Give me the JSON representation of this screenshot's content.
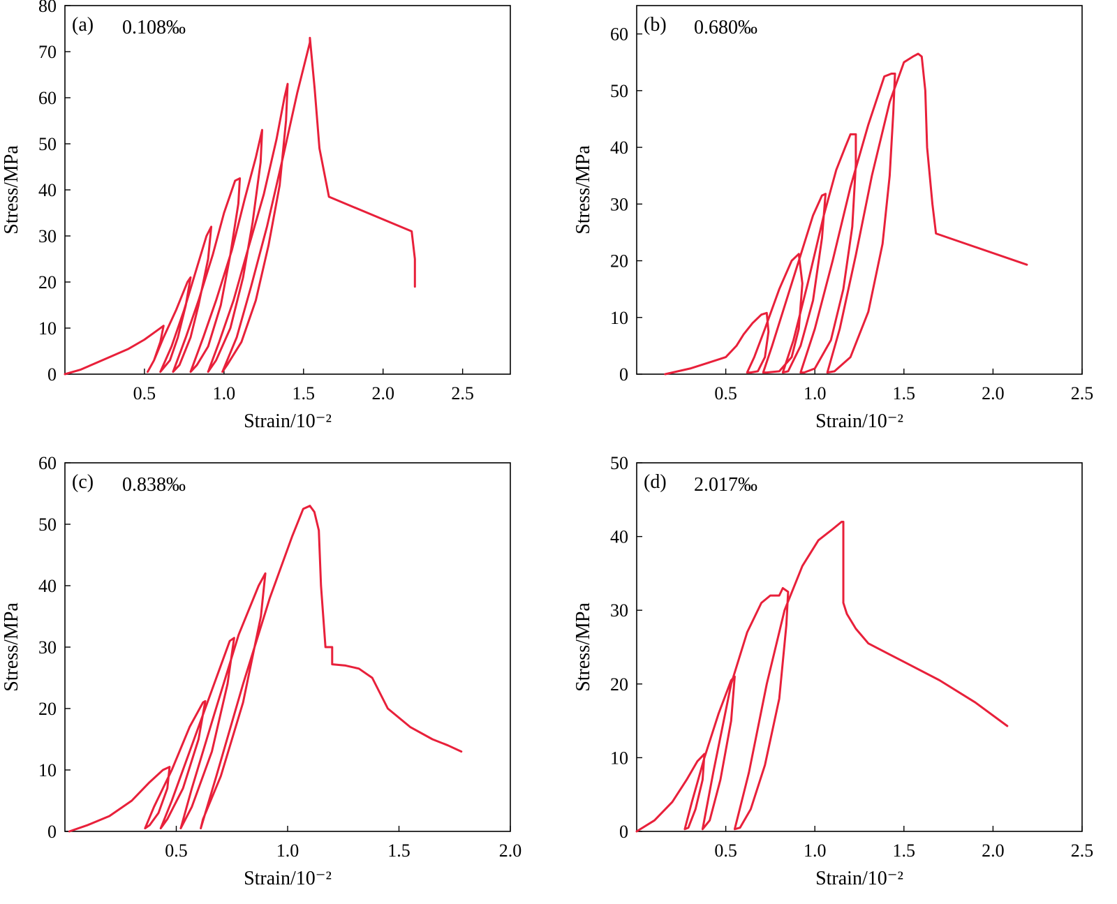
{
  "chart_data": [
    {
      "type": "line",
      "panel_label": "(a)",
      "annotation": "0.108‰",
      "xlabel": "Strain/10⁻²",
      "ylabel": "Stress/MPa",
      "xlim": [
        0,
        2.8
      ],
      "ylim": [
        0,
        80
      ],
      "xticks": [
        0.5,
        1.0,
        1.5,
        2.0,
        2.5
      ],
      "xtick_labels": [
        "0.5",
        "1.0",
        "1.5",
        "2.0",
        "2.5"
      ],
      "yticks": [
        0,
        10,
        20,
        30,
        40,
        50,
        60,
        70,
        80
      ],
      "ytick_labels": [
        "0",
        "10",
        "20",
        "30",
        "40",
        "50",
        "60",
        "70",
        "80"
      ],
      "color": "#e8203a",
      "series": [
        {
          "x": [
            0.0,
            0.1,
            0.2,
            0.3,
            0.4,
            0.5,
            0.58,
            0.62,
            0.6,
            0.56,
            0.52,
            0.56,
            0.62,
            0.7,
            0.77,
            0.79,
            0.76,
            0.71,
            0.66,
            0.6,
            0.67,
            0.75,
            0.82,
            0.89,
            0.92,
            0.9,
            0.84,
            0.79,
            0.72,
            0.68,
            0.76,
            0.84,
            0.93,
            1.0,
            1.07,
            1.1,
            1.09,
            1.04,
            0.98,
            0.9,
            0.83,
            0.79,
            0.87,
            0.95,
            1.05,
            1.13,
            1.2,
            1.24,
            1.23,
            1.18,
            1.12,
            1.04,
            0.95,
            0.9,
            0.97,
            1.06,
            1.15,
            1.25,
            1.33,
            1.38,
            1.4,
            1.39,
            1.35,
            1.28,
            1.2,
            1.11,
            1.02,
            0.99,
            1.08,
            1.17,
            1.27,
            1.37,
            1.46,
            1.54,
            1.54,
            1.57,
            1.6,
            1.66,
            2.18,
            2.2,
            2.2
          ],
          "y": [
            0,
            1,
            2.5,
            4,
            5.5,
            7.5,
            9.5,
            10.5,
            7,
            3,
            0.5,
            3,
            8,
            14,
            20,
            21,
            15,
            8,
            3,
            0.5,
            6,
            14,
            22,
            30,
            32,
            25,
            15,
            8,
            2,
            0.5,
            8,
            16,
            26,
            35,
            42,
            42.5,
            37,
            26,
            15,
            6,
            2,
            0.5,
            8,
            16,
            27,
            38,
            47,
            53,
            46,
            33,
            21,
            10,
            3,
            0.5,
            7,
            16,
            27,
            39,
            51,
            60,
            63,
            55,
            41,
            28,
            16,
            7,
            2,
            0.5,
            8,
            19,
            32,
            47,
            61,
            72,
            73,
            62,
            49,
            38.5,
            31,
            25,
            19
          ]
        }
      ]
    },
    {
      "type": "line",
      "panel_label": "(b)",
      "annotation": "0.680‰",
      "xlabel": "Strain/10⁻²",
      "ylabel": "Stress/MPa",
      "xlim": [
        0,
        2.5
      ],
      "ylim": [
        0,
        65
      ],
      "xticks": [
        0.5,
        1.0,
        1.5,
        2.0,
        2.5
      ],
      "xtick_labels": [
        "0.5",
        "1.0",
        "1.5",
        "2.0",
        "2.5"
      ],
      "yticks": [
        0,
        10,
        20,
        30,
        40,
        50,
        60
      ],
      "ytick_labels": [
        "0",
        "10",
        "20",
        "30",
        "40",
        "50",
        "60"
      ],
      "color": "#e8203a",
      "series": [
        {
          "x": [
            0.16,
            0.3,
            0.4,
            0.5,
            0.56,
            0.6,
            0.65,
            0.7,
            0.73,
            0.74,
            0.72,
            0.68,
            0.64,
            0.62,
            0.66,
            0.72,
            0.8,
            0.87,
            0.91,
            0.93,
            0.91,
            0.87,
            0.8,
            0.73,
            0.71,
            0.76,
            0.84,
            0.92,
            0.99,
            1.04,
            1.06,
            1.04,
            0.99,
            0.92,
            0.85,
            0.82,
            0.88,
            0.96,
            1.05,
            1.12,
            1.17,
            1.2,
            1.23,
            1.23,
            1.21,
            1.16,
            1.09,
            1.0,
            0.94,
            0.92,
            1.0,
            1.1,
            1.2,
            1.3,
            1.39,
            1.43,
            1.45,
            1.44,
            1.42,
            1.38,
            1.3,
            1.2,
            1.11,
            1.07,
            1.14,
            1.23,
            1.32,
            1.42,
            1.5,
            1.55,
            1.58,
            1.6,
            1.62,
            1.63,
            1.66,
            1.68,
            2.19
          ],
          "y": [
            0,
            1,
            2,
            3,
            5,
            7,
            9,
            10.5,
            10.8,
            7.5,
            3,
            0.5,
            0.3,
            0.3,
            3,
            8,
            15,
            20,
            21.2,
            16,
            8,
            3,
            0.5,
            0.3,
            0.3,
            5,
            13,
            21,
            28,
            31.5,
            31.8,
            24,
            13,
            5,
            0.5,
            0.3,
            6,
            16,
            28,
            36,
            40,
            42.3,
            42.3,
            37,
            26,
            15,
            6,
            1,
            0.3,
            0.3,
            8,
            20,
            33,
            44,
            52.5,
            53,
            53,
            46,
            35,
            23,
            11,
            3,
            0.5,
            0.3,
            8,
            21,
            35,
            48,
            55,
            56,
            56.5,
            56,
            50,
            40,
            30,
            24.8,
            19.3
          ]
        }
      ]
    },
    {
      "type": "line",
      "panel_label": "(c)",
      "annotation": "0.838‰",
      "xlabel": "Strain/10⁻²",
      "ylabel": "Stress/MPa",
      "xlim": [
        0,
        2.0
      ],
      "ylim": [
        0,
        60
      ],
      "xticks": [
        0.5,
        1.0,
        1.5,
        2.0
      ],
      "xtick_labels": [
        "0.5",
        "1.0",
        "1.5",
        "2.0"
      ],
      "yticks": [
        0,
        10,
        20,
        30,
        40,
        50,
        60
      ],
      "ytick_labels": [
        "0",
        "10",
        "20",
        "30",
        "40",
        "50",
        "60"
      ],
      "color": "#e8203a",
      "series": [
        {
          "x": [
            0.02,
            0.1,
            0.2,
            0.3,
            0.38,
            0.44,
            0.47,
            0.46,
            0.42,
            0.38,
            0.36,
            0.4,
            0.48,
            0.56,
            0.62,
            0.63,
            0.6,
            0.53,
            0.46,
            0.43,
            0.48,
            0.56,
            0.66,
            0.74,
            0.76,
            0.73,
            0.66,
            0.57,
            0.52,
            0.57,
            0.67,
            0.78,
            0.87,
            0.9,
            0.88,
            0.8,
            0.7,
            0.62,
            0.61,
            0.68,
            0.8,
            0.92,
            1.02,
            1.07,
            1.1,
            1.12,
            1.14,
            1.15,
            1.17,
            1.2,
            1.2,
            1.26,
            1.32,
            1.38,
            1.45,
            1.55,
            1.65,
            1.72,
            1.78
          ],
          "y": [
            0,
            1,
            2.5,
            5,
            8,
            10,
            10.5,
            7,
            3,
            1,
            0.5,
            4,
            10,
            17,
            21,
            21.2,
            15,
            7,
            2,
            0.5,
            5,
            13,
            23,
            31,
            31.5,
            24,
            13,
            4,
            0.5,
            7,
            19,
            32,
            40,
            42,
            35,
            21,
            9,
            2,
            0.5,
            9,
            24,
            38,
            48,
            52.5,
            53,
            52,
            49,
            40,
            30,
            30,
            27.2,
            27,
            26.5,
            25,
            20,
            17,
            15,
            14,
            13
          ]
        }
      ]
    },
    {
      "type": "line",
      "panel_label": "(d)",
      "annotation": "2.017‰",
      "xlabel": "Strain/10⁻²",
      "ylabel": "Stress/MPa",
      "xlim": [
        0,
        2.5
      ],
      "ylim": [
        0,
        50
      ],
      "xticks": [
        0.5,
        1.0,
        1.5,
        2.0,
        2.5
      ],
      "xtick_labels": [
        "0.5",
        "1.0",
        "1.5",
        "2.0",
        "2.5"
      ],
      "yticks": [
        0,
        10,
        20,
        30,
        40,
        50
      ],
      "ytick_labels": [
        "0",
        "10",
        "20",
        "30",
        "40",
        "50"
      ],
      "color": "#e8203a",
      "series": [
        {
          "x": [
            0.0,
            0.1,
            0.2,
            0.28,
            0.34,
            0.38,
            0.37,
            0.33,
            0.29,
            0.27,
            0.31,
            0.38,
            0.46,
            0.53,
            0.55,
            0.53,
            0.47,
            0.41,
            0.37,
            0.43,
            0.53,
            0.62,
            0.7,
            0.75,
            0.8,
            0.82,
            0.85,
            0.84,
            0.8,
            0.72,
            0.64,
            0.58,
            0.55,
            0.63,
            0.73,
            0.83,
            0.93,
            1.02,
            1.1,
            1.15,
            1.16,
            1.16,
            1.18,
            1.23,
            1.3,
            1.5,
            1.7,
            1.9,
            2.08
          ],
          "y": [
            0,
            1.5,
            4,
            7,
            9.5,
            10.5,
            7,
            3,
            0.5,
            0.3,
            4,
            10,
            16,
            20.5,
            21,
            15,
            7,
            1.5,
            0.3,
            8,
            20,
            27,
            31,
            32,
            32,
            33,
            32.5,
            28,
            18,
            9,
            3,
            0.5,
            0.3,
            8,
            20,
            30,
            36,
            39.5,
            41,
            42,
            42,
            31,
            29.5,
            27.5,
            25.5,
            23,
            20.5,
            17.5,
            14.3
          ]
        }
      ]
    }
  ]
}
